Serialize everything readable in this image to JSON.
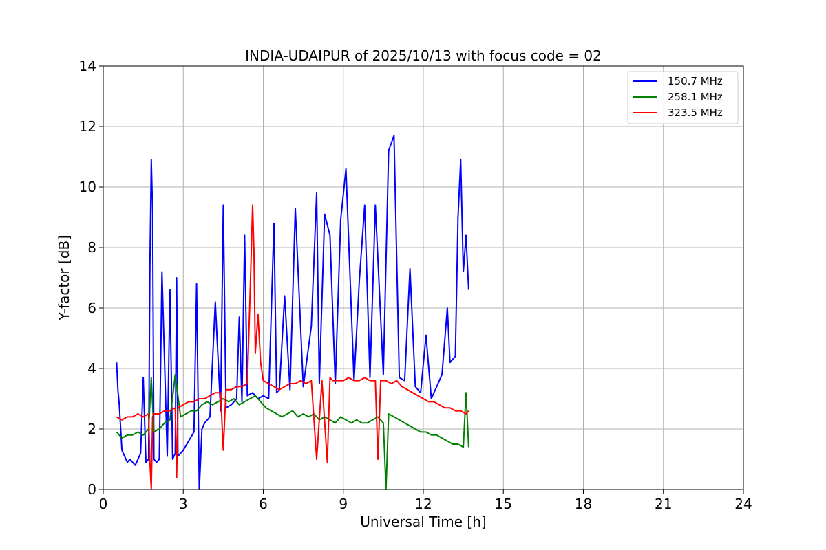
{
  "chart_data": {
    "type": "line",
    "title": "INDIA-UDAIPUR of 2025/10/13 with focus code = 02",
    "xlabel": "Universal Time [h]",
    "ylabel": "Y-factor [dB]",
    "xlim": [
      0,
      24
    ],
    "ylim": [
      0,
      14
    ],
    "xticks": [
      0,
      3,
      6,
      9,
      12,
      15,
      18,
      21,
      24
    ],
    "yticks": [
      0,
      2,
      4,
      6,
      8,
      10,
      12,
      14
    ],
    "grid": true,
    "legend_position": "top-right",
    "series": [
      {
        "name": "150.7 MHz",
        "color": "#0000ff",
        "x": [
          0.5,
          0.55,
          0.6,
          0.7,
          0.8,
          0.9,
          1.0,
          1.2,
          1.4,
          1.5,
          1.6,
          1.7,
          1.75,
          1.8,
          1.85,
          1.9,
          2.0,
          2.1,
          2.2,
          2.4,
          2.5,
          2.6,
          2.7,
          2.75,
          2.8,
          3.0,
          3.2,
          3.4,
          3.5,
          3.6,
          3.7,
          3.8,
          4.0,
          4.2,
          4.4,
          4.5,
          4.6,
          4.8,
          5.0,
          5.1,
          5.2,
          5.3,
          5.4,
          5.6,
          5.8,
          6.0,
          6.2,
          6.4,
          6.5,
          6.6,
          6.8,
          7.0,
          7.2,
          7.5,
          7.8,
          8.0,
          8.1,
          8.3,
          8.5,
          8.7,
          8.9,
          9.1,
          9.4,
          9.6,
          9.8,
          10.0,
          10.2,
          10.5,
          10.7,
          10.9,
          11.1,
          11.3,
          11.5,
          11.7,
          11.9,
          12.1,
          12.3,
          12.5,
          12.7,
          12.9,
          13.0,
          13.2,
          13.3,
          13.4,
          13.5,
          13.6,
          13.7
        ],
        "y": [
          4.2,
          3.3,
          2.8,
          1.3,
          1.1,
          0.9,
          1.0,
          0.8,
          1.2,
          3.7,
          0.9,
          1.0,
          7.4,
          10.9,
          9.1,
          1.0,
          0.9,
          1.0,
          7.2,
          1.1,
          6.6,
          1.0,
          1.2,
          7.0,
          1.1,
          1.3,
          1.6,
          1.9,
          6.8,
          0.0,
          2.0,
          2.2,
          2.4,
          6.2,
          2.6,
          9.4,
          2.7,
          2.8,
          3.0,
          5.7,
          2.9,
          8.4,
          3.1,
          3.2,
          3.0,
          3.1,
          3.0,
          8.8,
          3.2,
          3.3,
          6.4,
          3.3,
          9.3,
          3.4,
          5.4,
          9.8,
          3.5,
          9.1,
          8.4,
          3.5,
          8.9,
          10.6,
          3.6,
          6.9,
          9.4,
          3.7,
          9.4,
          3.8,
          11.2,
          11.7,
          3.7,
          3.6,
          7.3,
          3.4,
          3.2,
          5.1,
          3.0,
          3.4,
          3.8,
          6.0,
          4.2,
          4.4,
          9.0,
          10.9,
          7.2,
          8.4,
          6.6
        ]
      },
      {
        "name": "258.1 MHz",
        "color": "#008000",
        "x": [
          0.5,
          0.7,
          0.9,
          1.1,
          1.3,
          1.5,
          1.7,
          1.8,
          1.9,
          2.1,
          2.3,
          2.5,
          2.7,
          2.9,
          3.1,
          3.3,
          3.5,
          3.7,
          3.9,
          4.1,
          4.3,
          4.5,
          4.7,
          4.9,
          5.1,
          5.3,
          5.5,
          5.7,
          5.9,
          6.1,
          6.3,
          6.5,
          6.7,
          6.9,
          7.1,
          7.3,
          7.5,
          7.7,
          7.9,
          8.1,
          8.3,
          8.5,
          8.7,
          8.9,
          9.1,
          9.3,
          9.5,
          9.7,
          9.9,
          10.1,
          10.3,
          10.5,
          10.6,
          10.7,
          10.9,
          11.1,
          11.3,
          11.5,
          11.7,
          11.9,
          12.1,
          12.3,
          12.5,
          12.7,
          12.9,
          13.1,
          13.3,
          13.5,
          13.6,
          13.7
        ],
        "y": [
          1.9,
          1.7,
          1.8,
          1.8,
          1.9,
          1.8,
          2.0,
          3.7,
          1.9,
          2.0,
          2.2,
          2.3,
          3.8,
          2.4,
          2.5,
          2.6,
          2.6,
          2.8,
          2.9,
          2.8,
          2.9,
          3.0,
          2.9,
          3.0,
          2.8,
          2.9,
          3.0,
          3.1,
          2.9,
          2.7,
          2.6,
          2.5,
          2.4,
          2.5,
          2.6,
          2.4,
          2.5,
          2.4,
          2.5,
          2.3,
          2.4,
          2.3,
          2.2,
          2.4,
          2.3,
          2.2,
          2.3,
          2.2,
          2.2,
          2.3,
          2.4,
          2.2,
          0.0,
          2.5,
          2.4,
          2.3,
          2.2,
          2.1,
          2.0,
          1.9,
          1.9,
          1.8,
          1.8,
          1.7,
          1.6,
          1.5,
          1.5,
          1.4,
          3.2,
          1.4
        ]
      },
      {
        "name": "323.5 MHz",
        "color": "#ff0000",
        "x": [
          0.5,
          0.7,
          0.9,
          1.1,
          1.3,
          1.5,
          1.7,
          1.75,
          1.8,
          1.85,
          1.9,
          2.1,
          2.3,
          2.5,
          2.7,
          2.75,
          2.8,
          3.0,
          3.2,
          3.4,
          3.6,
          3.8,
          4.0,
          4.2,
          4.4,
          4.5,
          4.6,
          4.8,
          5.0,
          5.2,
          5.4,
          5.5,
          5.6,
          5.65,
          5.7,
          5.8,
          5.9,
          6.0,
          6.2,
          6.4,
          6.6,
          6.8,
          7.0,
          7.2,
          7.4,
          7.6,
          7.8,
          8.0,
          8.2,
          8.4,
          8.5,
          8.6,
          8.8,
          9.0,
          9.2,
          9.4,
          9.6,
          9.8,
          10.0,
          10.2,
          10.3,
          10.4,
          10.6,
          10.8,
          11.0,
          11.2,
          11.4,
          11.6,
          11.8,
          12.0,
          12.2,
          12.4,
          12.6,
          12.8,
          13.0,
          13.2,
          13.4,
          13.6,
          13.7
        ],
        "y": [
          2.4,
          2.3,
          2.4,
          2.4,
          2.5,
          2.4,
          2.5,
          0.9,
          0.0,
          2.4,
          2.5,
          2.5,
          2.6,
          2.6,
          2.7,
          0.4,
          2.7,
          2.8,
          2.9,
          2.9,
          3.0,
          3.0,
          3.1,
          3.2,
          3.2,
          1.3,
          3.3,
          3.3,
          3.4,
          3.4,
          3.5,
          6.3,
          9.4,
          7.9,
          4.5,
          5.8,
          4.2,
          3.6,
          3.5,
          3.4,
          3.3,
          3.4,
          3.5,
          3.5,
          3.6,
          3.5,
          3.6,
          1.0,
          3.6,
          0.9,
          3.7,
          3.6,
          3.6,
          3.6,
          3.7,
          3.6,
          3.6,
          3.7,
          3.6,
          3.6,
          1.0,
          3.6,
          3.6,
          3.5,
          3.6,
          3.4,
          3.3,
          3.2,
          3.1,
          3.0,
          2.9,
          2.9,
          2.8,
          2.7,
          2.7,
          2.6,
          2.6,
          2.5,
          2.6
        ]
      }
    ]
  }
}
